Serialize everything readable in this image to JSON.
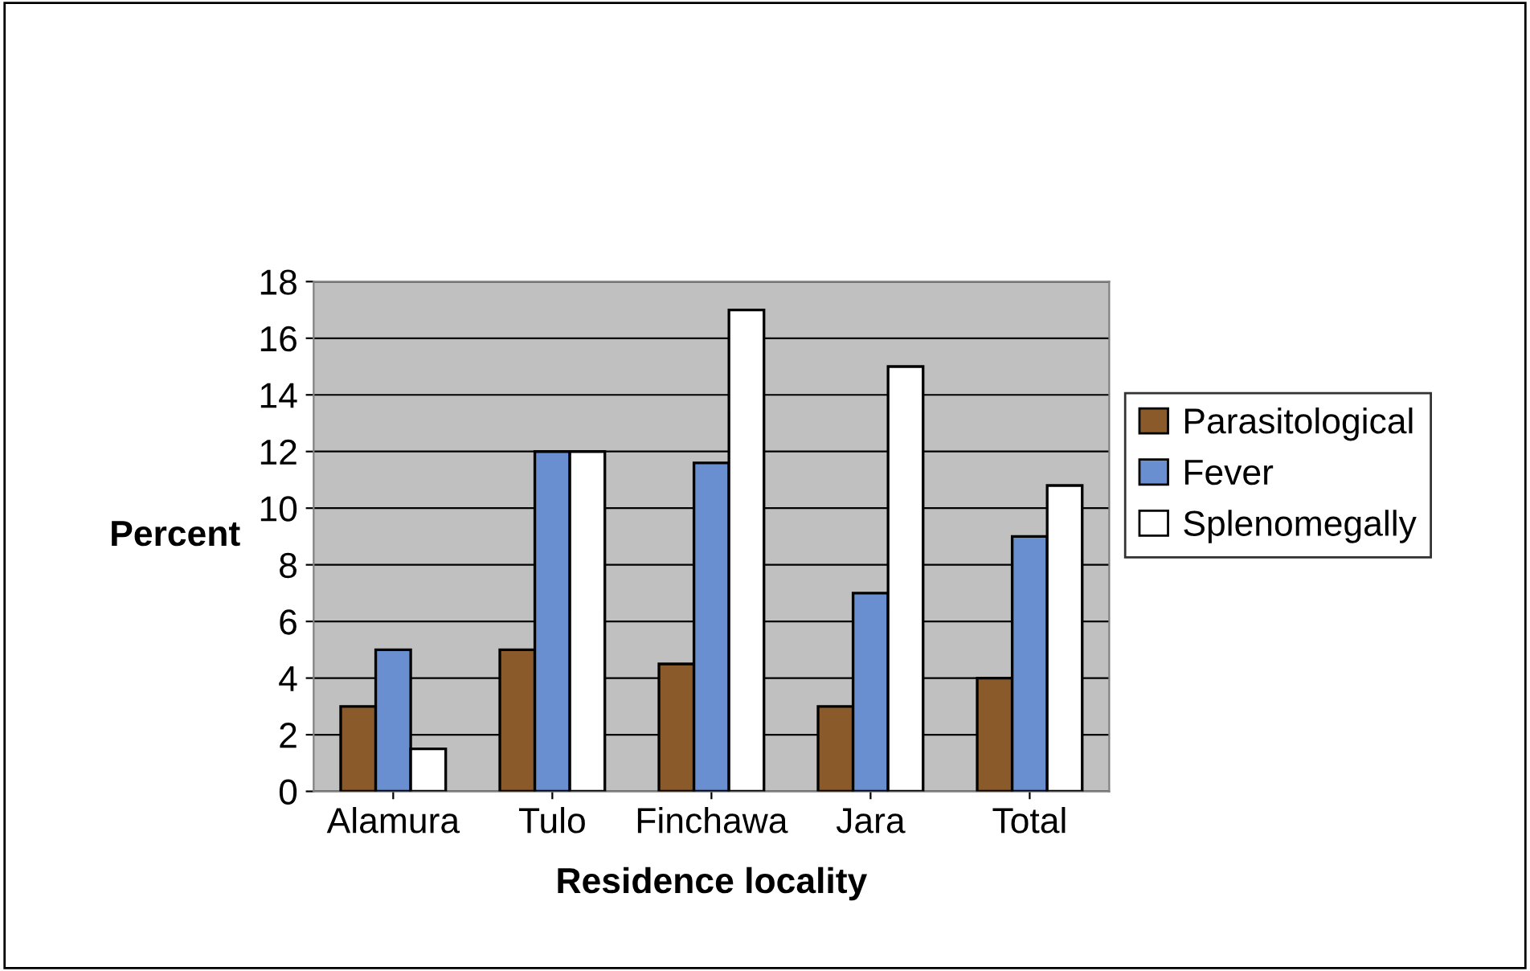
{
  "chart_data": {
    "type": "bar",
    "xlabel": "Residence locality",
    "ylabel": "Percent",
    "categories": [
      "Alamura",
      "Tulo",
      "Finchawa",
      "Jara",
      "Total"
    ],
    "series": [
      {
        "name": "Parasitological",
        "color": "#8b5a2b",
        "values": [
          3,
          5,
          4.5,
          3,
          4
        ]
      },
      {
        "name": "Fever",
        "color": "#6a8fd0",
        "values": [
          5,
          12,
          11.6,
          7,
          9
        ]
      },
      {
        "name": "Splenomegally",
        "color": "#ffffff",
        "values": [
          1.5,
          12,
          17,
          15,
          10.8
        ]
      }
    ],
    "ylim": [
      0,
      18
    ],
    "yticks": [
      0,
      2,
      4,
      6,
      8,
      10,
      12,
      14,
      16,
      18
    ],
    "grid": "y",
    "legend": "right"
  }
}
